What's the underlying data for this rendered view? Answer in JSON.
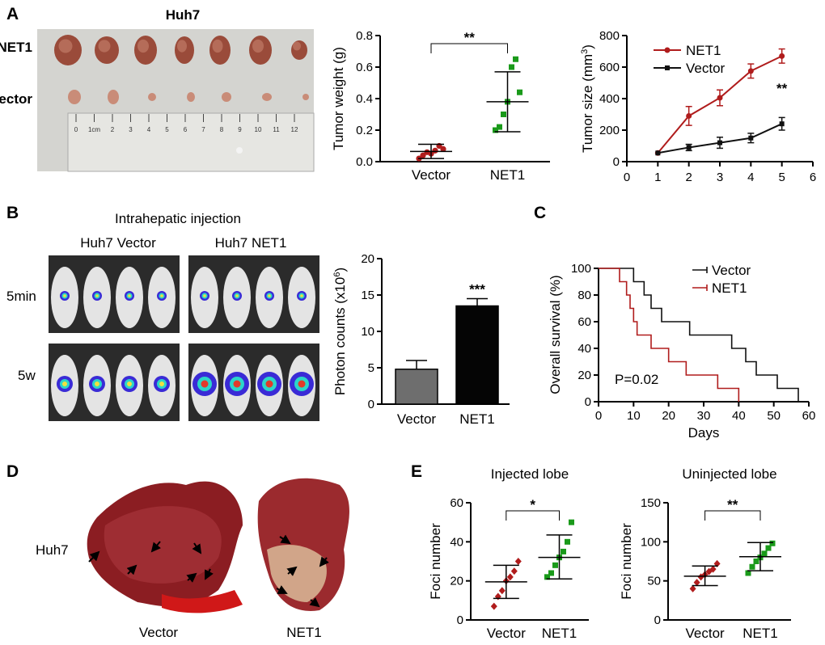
{
  "panel_letters": {
    "a": "A",
    "b": "B",
    "c": "C",
    "d": "D",
    "e": "E"
  },
  "panelA": {
    "photo_title": "Huh7",
    "row_labels": [
      "NET1",
      "Vector"
    ],
    "ruler_ticks": [
      "0",
      "1cm",
      "2",
      "3",
      "4",
      "5",
      "6",
      "7",
      "8",
      "9",
      "10",
      "11",
      "12"
    ]
  },
  "panelB": {
    "title": "Intrahepatic injection",
    "group_labels": [
      "Huh7 Vector",
      "Huh7 NET1"
    ],
    "time_labels": [
      "5min",
      "5w"
    ]
  },
  "panelD": {
    "cell_label": "Huh7",
    "liver_labels": [
      "Vector",
      "NET1"
    ]
  },
  "colors": {
    "net1_red": "#b01c1c",
    "net1_green": "#1a9a1a",
    "vector_dark": "#111111",
    "vector_red": "#b01c1c",
    "bar_vector": "#6e6e6e",
    "bar_net1": "#050505"
  },
  "chart_data": [
    {
      "id": "tumor-weight",
      "type": "scatter",
      "title": "",
      "xlabel": "",
      "ylabel": "Tumor weight (g)",
      "ylim": [
        0.0,
        0.8
      ],
      "yticks": [
        "0.0",
        "0.2",
        "0.4",
        "0.6",
        "0.8"
      ],
      "categories": [
        "Vector",
        "NET1"
      ],
      "series": [
        {
          "name": "Vector",
          "values": [
            0.02,
            0.04,
            0.06,
            0.05,
            0.07,
            0.1,
            0.08
          ],
          "mean": 0.065,
          "sd_low": 0.02,
          "sd_high": 0.11
        },
        {
          "name": "NET1",
          "values": [
            0.2,
            0.22,
            0.3,
            0.38,
            0.6,
            0.65,
            0.44
          ],
          "mean": 0.38,
          "sd_low": 0.19,
          "sd_high": 0.57
        }
      ],
      "significance": "**"
    },
    {
      "id": "tumor-size",
      "type": "line",
      "ylabel": "Tumor size (mm3)",
      "ylabel_main": "Tumor size (mm",
      "ylabel_sup": "3",
      "ylabel_end": ")",
      "xlim": [
        0,
        6
      ],
      "ylim": [
        0,
        800
      ],
      "xticks": [
        "0",
        "1",
        "2",
        "3",
        "4",
        "5",
        "6"
      ],
      "yticks": [
        "0",
        "200",
        "400",
        "600",
        "800"
      ],
      "x": [
        1,
        2,
        3,
        4,
        5
      ],
      "series": [
        {
          "name": "NET1",
          "values": [
            55,
            290,
            405,
            575,
            670
          ],
          "err": [
            0,
            60,
            50,
            45,
            45
          ]
        },
        {
          "name": "Vector",
          "values": [
            55,
            90,
            120,
            150,
            240
          ],
          "err": [
            0,
            20,
            35,
            30,
            40
          ]
        }
      ],
      "significance": "**"
    },
    {
      "id": "photon-counts",
      "type": "bar",
      "ylabel": "Photon counts (x10",
      "ylabel_sup": "6",
      "ylabel_end": ")",
      "ylim": [
        0,
        20
      ],
      "yticks": [
        "0",
        "5",
        "10",
        "15",
        "20"
      ],
      "categories": [
        "Vector",
        "NET1"
      ],
      "values": [
        4.8,
        13.5
      ],
      "err": [
        1.2,
        1.0
      ],
      "significance": "***"
    },
    {
      "id": "overall-survival",
      "type": "line",
      "xlabel": "Days",
      "ylabel": "Overall survival (%)",
      "xlim": [
        0,
        60
      ],
      "ylim": [
        0,
        100
      ],
      "xticks": [
        "0",
        "10",
        "20",
        "30",
        "40",
        "50",
        "60"
      ],
      "yticks": [
        "0",
        "20",
        "40",
        "60",
        "80",
        "100"
      ],
      "series": [
        {
          "name": "Vector",
          "steps": [
            [
              0,
              100
            ],
            [
              10,
              100
            ],
            [
              10,
              90
            ],
            [
              13,
              90
            ],
            [
              13,
              80
            ],
            [
              15,
              80
            ],
            [
              15,
              70
            ],
            [
              18,
              70
            ],
            [
              18,
              60
            ],
            [
              26,
              60
            ],
            [
              26,
              50
            ],
            [
              38,
              50
            ],
            [
              38,
              40
            ],
            [
              42,
              40
            ],
            [
              42,
              30
            ],
            [
              45,
              30
            ],
            [
              45,
              20
            ],
            [
              51,
              20
            ],
            [
              51,
              10
            ],
            [
              57,
              10
            ],
            [
              57,
              0
            ]
          ]
        },
        {
          "name": "NET1",
          "steps": [
            [
              0,
              100
            ],
            [
              6,
              100
            ],
            [
              6,
              90
            ],
            [
              8,
              90
            ],
            [
              8,
              80
            ],
            [
              9,
              80
            ],
            [
              9,
              70
            ],
            [
              10,
              70
            ],
            [
              10,
              60
            ],
            [
              11,
              60
            ],
            [
              11,
              50
            ],
            [
              15,
              50
            ],
            [
              15,
              40
            ],
            [
              20,
              40
            ],
            [
              20,
              30
            ],
            [
              25,
              30
            ],
            [
              25,
              20
            ],
            [
              34,
              20
            ],
            [
              34,
              10
            ],
            [
              40,
              10
            ],
            [
              40,
              0
            ]
          ]
        }
      ],
      "annotation": "P=0.02"
    },
    {
      "id": "injected-lobe",
      "type": "scatter",
      "title": "Injected lobe",
      "ylabel": "Foci number",
      "ylim": [
        0,
        60
      ],
      "yticks": [
        "0",
        "20",
        "40",
        "60"
      ],
      "categories": [
        "Vector",
        "NET1"
      ],
      "series": [
        {
          "name": "Vector",
          "values": [
            7,
            12,
            15,
            20,
            22,
            25,
            30
          ],
          "mean": 19.5,
          "sd_low": 11,
          "sd_high": 28
        },
        {
          "name": "NET1",
          "values": [
            22,
            24,
            28,
            32,
            35,
            40,
            50
          ],
          "mean": 32,
          "sd_low": 21,
          "sd_high": 43.5
        }
      ],
      "significance": "*"
    },
    {
      "id": "uninjected-lobe",
      "type": "scatter",
      "title": "Uninjected lobe",
      "ylabel": "Foci number",
      "ylim": [
        0,
        150
      ],
      "yticks": [
        "0",
        "50",
        "100",
        "150"
      ],
      "categories": [
        "Vector",
        "NET1"
      ],
      "series": [
        {
          "name": "Vector",
          "values": [
            40,
            48,
            55,
            58,
            62,
            65,
            72
          ],
          "mean": 56,
          "sd_low": 44,
          "sd_high": 69
        },
        {
          "name": "NET1",
          "values": [
            60,
            68,
            75,
            80,
            85,
            92,
            98
          ],
          "mean": 81,
          "sd_low": 63,
          "sd_high": 99
        }
      ],
      "significance": "**"
    }
  ]
}
